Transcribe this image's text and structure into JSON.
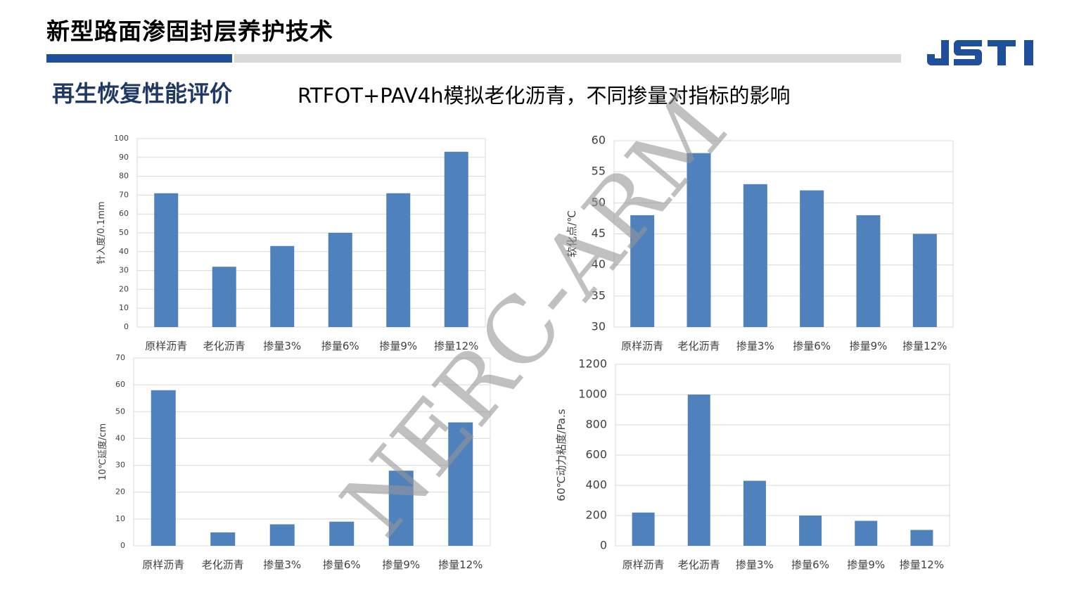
{
  "header": {
    "title": "新型路面渗固封层养护技术",
    "logo_text": "JSTI",
    "accent_color": "#1f4e9a",
    "divider_color": "#d9d9d9"
  },
  "section": {
    "title": "再生恢复性能评价",
    "subtitle": "RTFOT+PAV4h模拟老化沥青，不同掺量对指标的影响"
  },
  "watermark": "NERC-ARM",
  "chart_data": [
    {
      "type": "bar",
      "categories": [
        "原样沥青",
        "老化沥青",
        "掺量3%",
        "掺量6%",
        "掺量9%",
        "掺量12%"
      ],
      "values": [
        71,
        32,
        43,
        50,
        71,
        93
      ],
      "ylabel": "针入度/0.1mm",
      "ylim": [
        0,
        100
      ],
      "yticks": [
        "0",
        "10",
        "20",
        "30",
        "40",
        "50",
        "60",
        "70",
        "80",
        "90",
        "100"
      ],
      "grid": true,
      "color": "#4f81bd"
    },
    {
      "type": "bar",
      "categories": [
        "原样沥青",
        "老化沥青",
        "掺量3%",
        "掺量6%",
        "掺量9%",
        "掺量12%"
      ],
      "values": [
        48,
        58,
        53,
        52,
        48,
        45
      ],
      "ylabel": "软化点/℃",
      "ylim": [
        30,
        60
      ],
      "yticks": [
        "30",
        "35",
        "40",
        "45",
        "50",
        "55",
        "60"
      ],
      "grid": true,
      "color": "#4f81bd"
    },
    {
      "type": "bar",
      "categories": [
        "原样沥青",
        "老化沥青",
        "掺量3%",
        "掺量6%",
        "掺量9%",
        "掺量12%"
      ],
      "values": [
        58,
        5,
        8,
        9,
        28,
        46
      ],
      "ylabel": "10℃延度/cm",
      "ylim": [
        0,
        70
      ],
      "yticks": [
        "0",
        "10",
        "20",
        "30",
        "40",
        "50",
        "60",
        "70"
      ],
      "grid": true,
      "color": "#4f81bd"
    },
    {
      "type": "bar",
      "categories": [
        "原样沥青",
        "老化沥青",
        "掺量3%",
        "掺量6%",
        "掺量9%",
        "掺量12%"
      ],
      "values": [
        220,
        1000,
        430,
        200,
        165,
        105
      ],
      "ylabel": "60℃动力粘度/Pa.s",
      "ylim": [
        0,
        1200
      ],
      "yticks": [
        "0",
        "200",
        "400",
        "600",
        "800",
        "1000",
        "1200"
      ],
      "grid": true,
      "color": "#4f81bd"
    }
  ]
}
